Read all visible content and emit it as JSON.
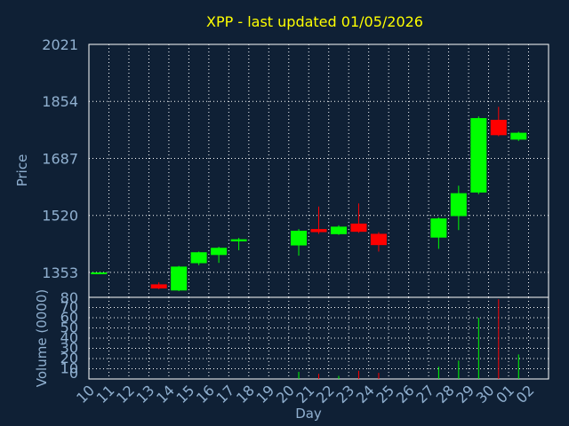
{
  "chart_data": {
    "type": "candlestick",
    "title": "XPP - last updated 01/05/2026",
    "xlabel": "Day",
    "ylabel": "Price",
    "volume_label": "Volume (0000)",
    "ylim": [
      1280,
      2021
    ],
    "y_ticks": [
      "2021",
      "1854",
      "1687",
      "1520",
      "1353"
    ],
    "volume_ylim": [
      0,
      80
    ],
    "volume_ticks": [
      "80",
      "70",
      "60",
      "50",
      "40",
      "30",
      "20",
      "10",
      "0"
    ],
    "x_ticks": [
      "10",
      "11",
      "12",
      "13",
      "14",
      "15",
      "16",
      "17",
      "18",
      "19",
      "20",
      "21",
      "22",
      "23",
      "24",
      "25",
      "26",
      "27",
      "28",
      "29",
      "30",
      "01",
      "02"
    ],
    "grid": true,
    "colors": {
      "up": "#00ff00",
      "down": "#ff0000",
      "title": "#ffff00",
      "axis_text": "#90b0d0",
      "background": "#0f2035"
    },
    "candles": [
      {
        "day": "10",
        "open": 1353,
        "close": 1353,
        "high": 1353,
        "low": 1353,
        "volume": 0
      },
      {
        "day": "13",
        "open": 1318,
        "close": 1306,
        "high": 1324,
        "low": 1304,
        "volume": 0
      },
      {
        "day": "14",
        "open": 1300,
        "close": 1370,
        "high": 1372,
        "low": 1298,
        "volume": 0
      },
      {
        "day": "15",
        "open": 1380,
        "close": 1412,
        "high": 1414,
        "low": 1374,
        "volume": 0
      },
      {
        "day": "16",
        "open": 1404,
        "close": 1425,
        "high": 1428,
        "low": 1381,
        "volume": 0
      },
      {
        "day": "17",
        "open": 1444,
        "close": 1450,
        "high": 1454,
        "low": 1418,
        "volume": 0
      },
      {
        "day": "20",
        "open": 1432,
        "close": 1475,
        "high": 1480,
        "low": 1402,
        "volume": 7
      },
      {
        "day": "21",
        "open": 1480,
        "close": 1471,
        "high": 1546,
        "low": 1466,
        "volume": 5
      },
      {
        "day": "22",
        "open": 1465,
        "close": 1487,
        "high": 1491,
        "low": 1463,
        "volume": 3
      },
      {
        "day": "23",
        "open": 1496,
        "close": 1472,
        "high": 1555,
        "low": 1469,
        "volume": 8
      },
      {
        "day": "24",
        "open": 1466,
        "close": 1433,
        "high": 1471,
        "low": 1414,
        "volume": 6
      },
      {
        "day": "27",
        "open": 1455,
        "close": 1511,
        "high": 1514,
        "low": 1422,
        "volume": 12
      },
      {
        "day": "28",
        "open": 1518,
        "close": 1585,
        "high": 1607,
        "low": 1477,
        "volume": 18
      },
      {
        "day": "29",
        "open": 1587,
        "close": 1805,
        "high": 1810,
        "low": 1582,
        "volume": 60
      },
      {
        "day": "30",
        "open": 1800,
        "close": 1755,
        "high": 1838,
        "low": 1752,
        "volume": 78
      },
      {
        "day": "01",
        "open": 1742,
        "close": 1762,
        "high": 1765,
        "low": 1738,
        "volume": 24
      }
    ]
  }
}
